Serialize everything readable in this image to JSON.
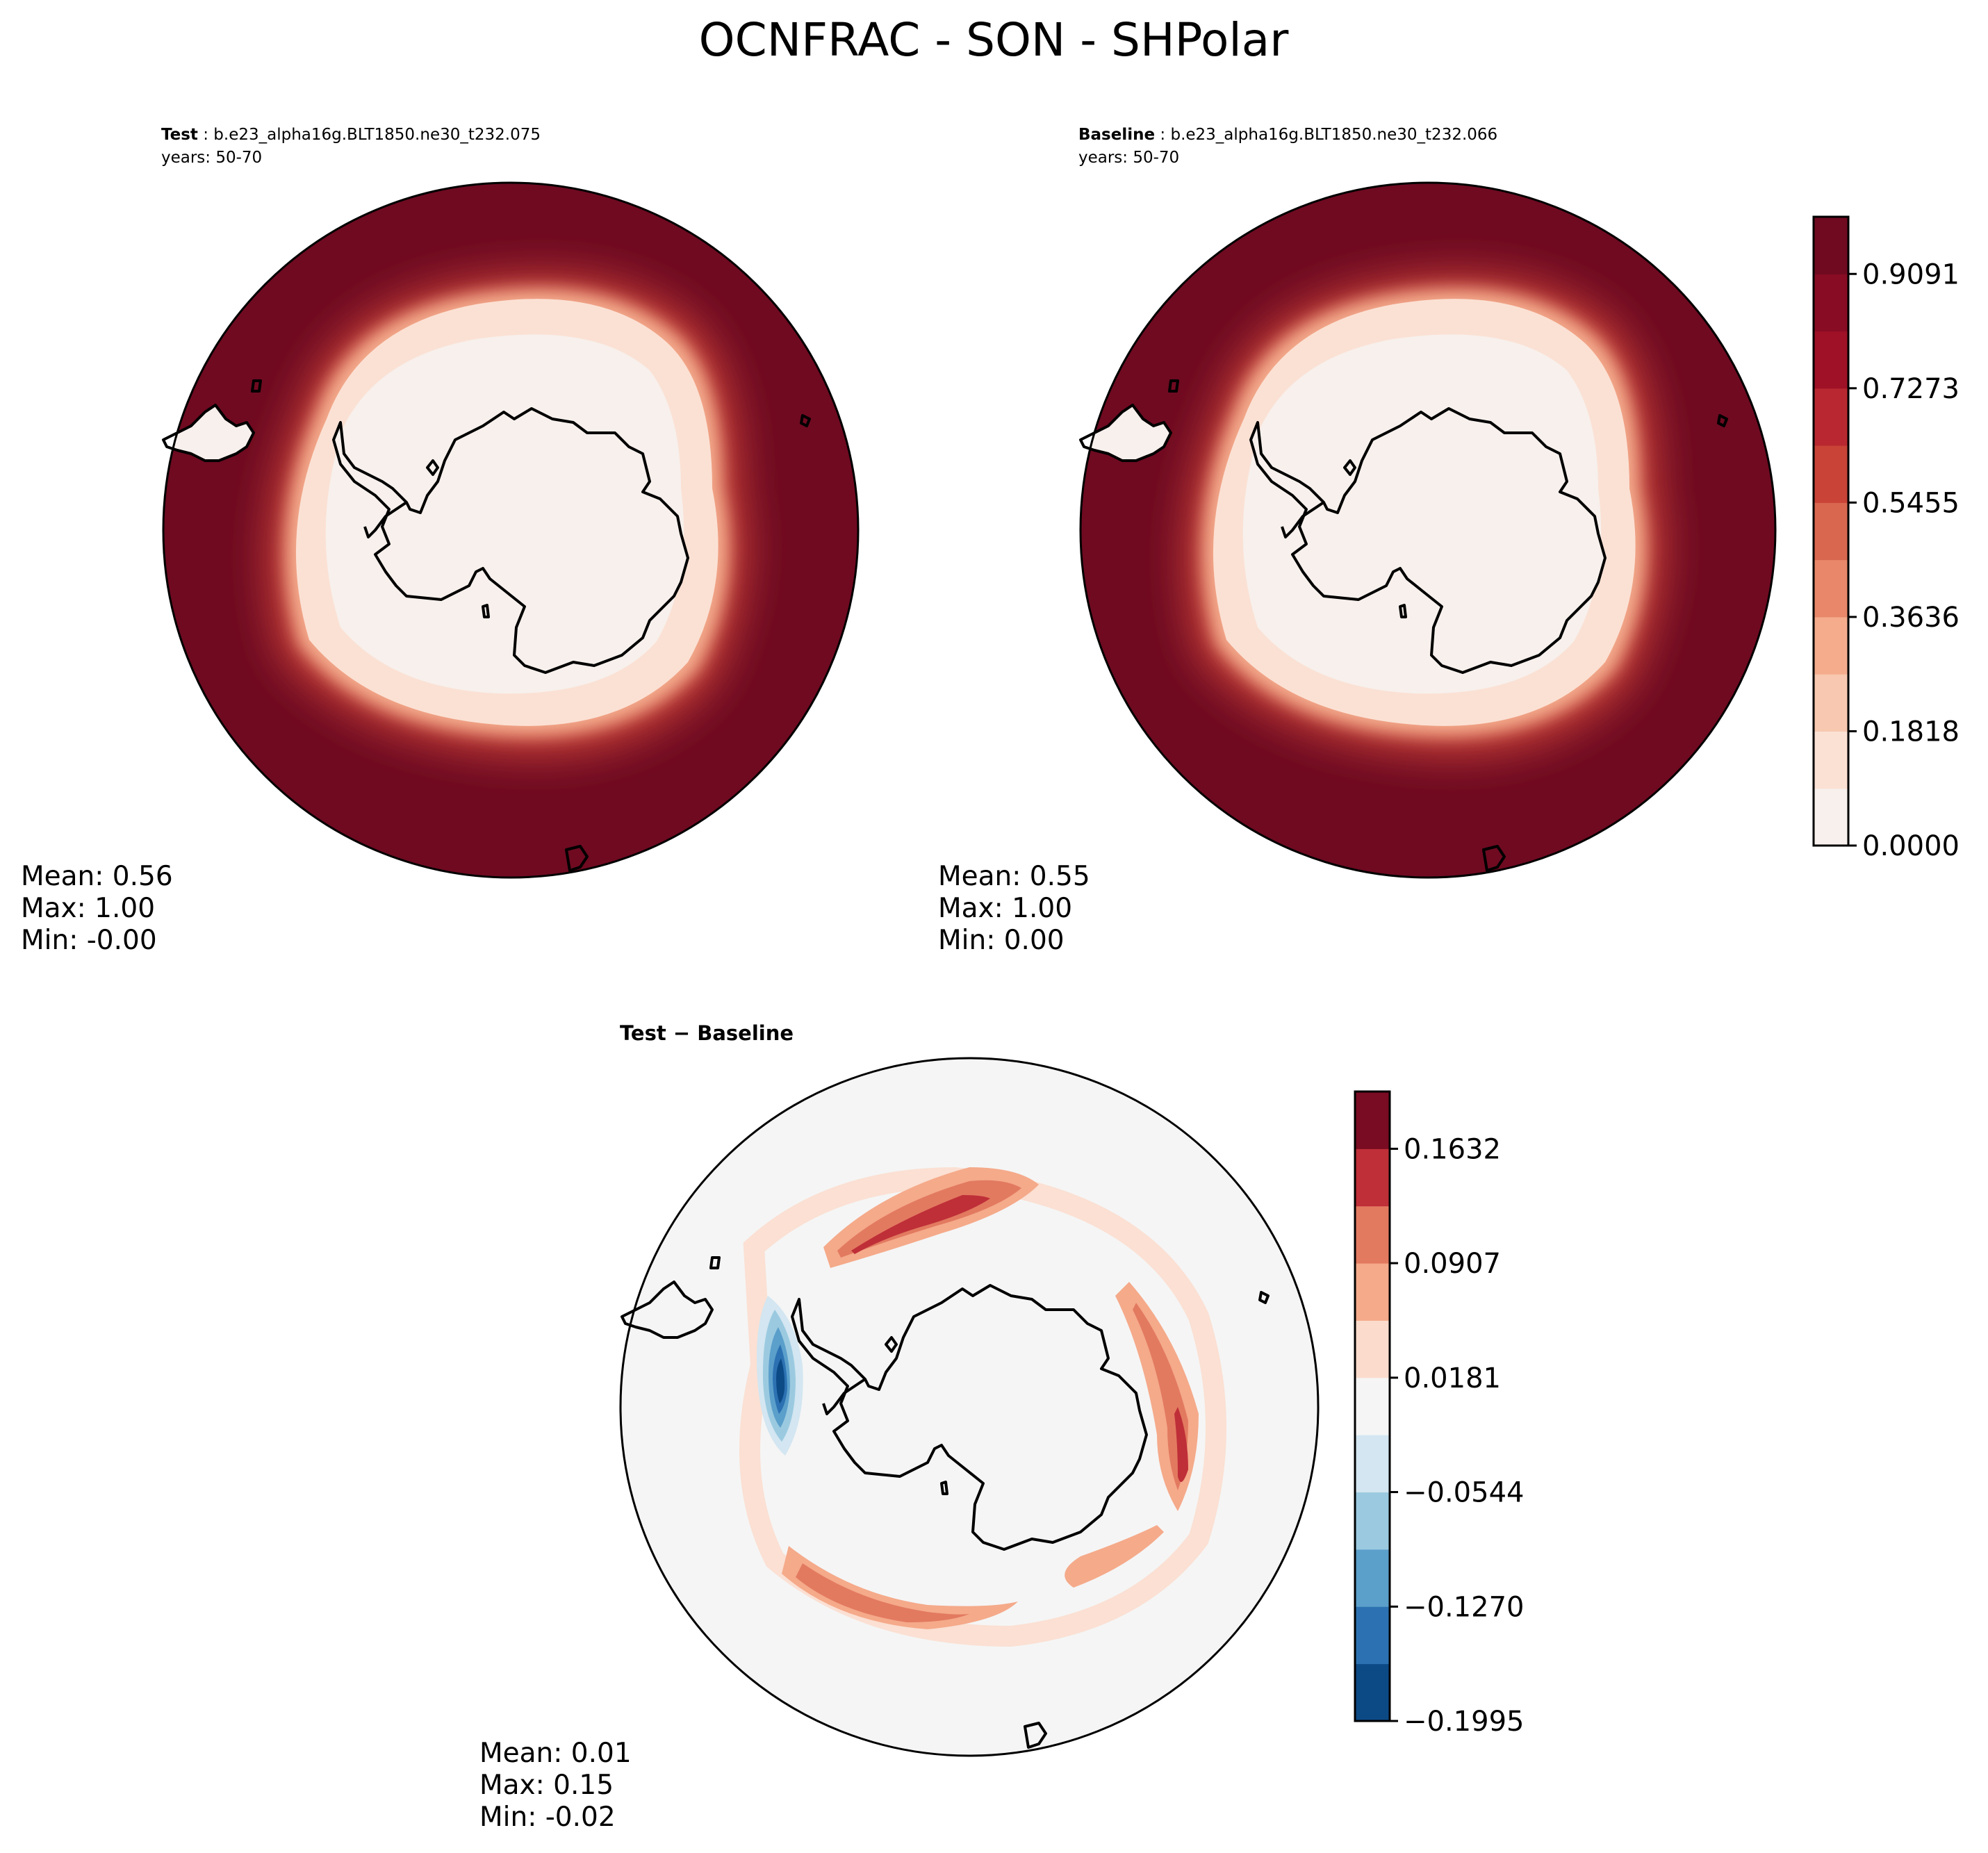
{
  "chart_data": {
    "type": "contour-map",
    "title": "OCNFRAC - SON - SHPolar",
    "panels": [
      {
        "id": "test",
        "label_bold": "Test",
        "label_rest": " : b.e23_alpha16g.BLT1850.ne30_t232.075",
        "years": "years: 50-70",
        "stats": {
          "mean": "Mean:  0.56",
          "max": "Max:  1.00",
          "min": "Min: -0.00"
        }
      },
      {
        "id": "baseline",
        "label_bold": "Baseline",
        "label_rest": " : b.e23_alpha16g.BLT1850.ne30_t232.066",
        "years": "years: 50-70",
        "stats": {
          "mean": "Mean:  0.55",
          "max": "Max:  1.00",
          "min": "Min:  0.00"
        }
      },
      {
        "id": "diff",
        "label_bold": "Test − Baseline",
        "stats": {
          "mean": "Mean:  0.01",
          "max": "Max:  0.15",
          "min": "Min: -0.02"
        }
      }
    ],
    "colorbars": [
      {
        "id": "abs",
        "ticks": [
          "0.9091",
          "0.7273",
          "0.5455",
          "0.3636",
          "0.1818",
          "0.0000"
        ],
        "tick_values": [
          0.9091,
          0.7273,
          0.5455,
          0.3636,
          0.1818,
          0.0
        ],
        "range": [
          0.0,
          1.0
        ],
        "levels": 11,
        "colors": [
          "#f7f0ec",
          "#fbe1d4",
          "#f8c8b0",
          "#f4ac8d",
          "#e8876a",
          "#d9674f",
          "#c94337",
          "#b92830",
          "#9e1126",
          "#880c24",
          "#6f0a21"
        ]
      },
      {
        "id": "diff",
        "ticks": [
          "0.1632",
          "0.0907",
          "0.0181",
          "−0.0544",
          "−0.1270",
          "−0.1995"
        ],
        "tick_values": [
          0.1632,
          0.0907,
          0.0181,
          -0.0544,
          -0.127,
          -0.1995
        ],
        "range": [
          -0.1995,
          0.1995
        ],
        "levels": 11,
        "colors": [
          "#0c4a86",
          "#2c72b2",
          "#5b9fcb",
          "#9bcae0",
          "#d3e6f1",
          "#f5f5f5",
          "#fbdccc",
          "#f5aa8a",
          "#e27a60",
          "#bf2f38",
          "#790b22"
        ]
      }
    ]
  }
}
